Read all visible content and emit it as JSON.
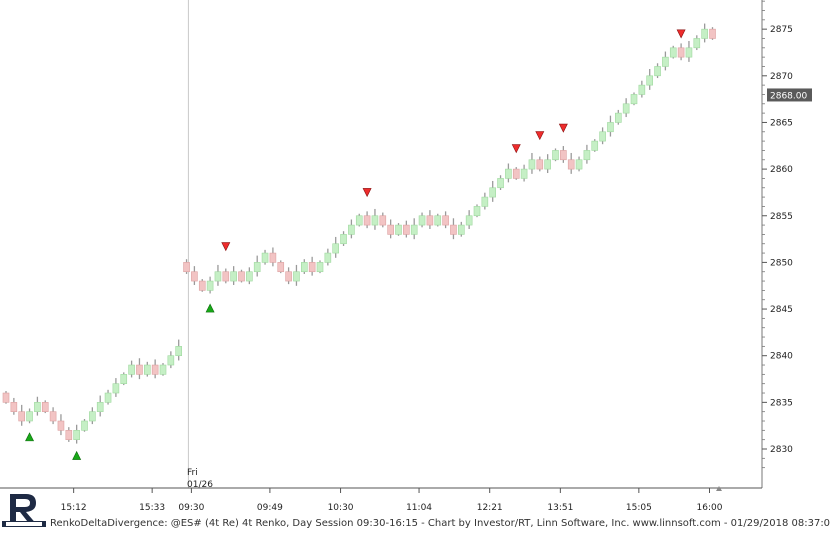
{
  "status_bar": {
    "text": "RenkoDeltaDivergence: @ES# (4t Re) 4t Renko, Day Session 09:30-16:15 - Chart by Investor/RT, Linn Software, Inc. www.linnsoft.com - 01/29/2018 08:37:0"
  },
  "session_label": {
    "day": "Fri",
    "date": "01/26"
  },
  "last_price": {
    "label": "2868.00"
  },
  "colors": {
    "up_brick": "#c5efc5",
    "down_brick": "#f2c4c4",
    "wick": "#9a9a9a",
    "buy_marker": "#18a818",
    "sell_marker": "#ee2c2c"
  },
  "chart_data": {
    "type": "renko",
    "brick_size": 1.0,
    "ylim": [
      2827,
      2879
    ],
    "yticks": [
      2830,
      2835,
      2840,
      2845,
      2850,
      2855,
      2860,
      2865,
      2870,
      2875
    ],
    "ytick_labels": [
      "2830",
      "2835",
      "2840",
      "2845",
      "2850",
      "2855",
      "2860",
      "2865",
      "2870",
      "2875"
    ],
    "xtick_labels": [
      "15:12",
      "15:33",
      "09:30",
      "09:49",
      "10:30",
      "11:04",
      "12:21",
      "13:51",
      "15:05",
      "16:00"
    ],
    "xtick_brick_index": [
      9,
      19,
      24,
      34,
      43,
      53,
      62,
      71,
      81,
      90
    ],
    "session_break_index": 24,
    "bricks": [
      {
        "d": "down",
        "c": 2835
      },
      {
        "d": "down",
        "c": 2834
      },
      {
        "d": "down",
        "c": 2833
      },
      {
        "d": "up",
        "c": 2834
      },
      {
        "d": "up",
        "c": 2835
      },
      {
        "d": "down",
        "c": 2834
      },
      {
        "d": "down",
        "c": 2833
      },
      {
        "d": "down",
        "c": 2832
      },
      {
        "d": "down",
        "c": 2831
      },
      {
        "d": "up",
        "c": 2832
      },
      {
        "d": "up",
        "c": 2833
      },
      {
        "d": "up",
        "c": 2834
      },
      {
        "d": "up",
        "c": 2835
      },
      {
        "d": "up",
        "c": 2836
      },
      {
        "d": "up",
        "c": 2837
      },
      {
        "d": "up",
        "c": 2838
      },
      {
        "d": "up",
        "c": 2839
      },
      {
        "d": "down",
        "c": 2838
      },
      {
        "d": "up",
        "c": 2839
      },
      {
        "d": "down",
        "c": 2838
      },
      {
        "d": "up",
        "c": 2839
      },
      {
        "d": "up",
        "c": 2840
      },
      {
        "d": "up",
        "c": 2841
      },
      {
        "d": "down",
        "c": 2849
      },
      {
        "d": "down",
        "c": 2848
      },
      {
        "d": "down",
        "c": 2847
      },
      {
        "d": "up",
        "c": 2848
      },
      {
        "d": "up",
        "c": 2849
      },
      {
        "d": "down",
        "c": 2848
      },
      {
        "d": "up",
        "c": 2849
      },
      {
        "d": "down",
        "c": 2848
      },
      {
        "d": "up",
        "c": 2849
      },
      {
        "d": "up",
        "c": 2850
      },
      {
        "d": "up",
        "c": 2851
      },
      {
        "d": "down",
        "c": 2850
      },
      {
        "d": "down",
        "c": 2849
      },
      {
        "d": "down",
        "c": 2848
      },
      {
        "d": "up",
        "c": 2849
      },
      {
        "d": "up",
        "c": 2850
      },
      {
        "d": "down",
        "c": 2849
      },
      {
        "d": "up",
        "c": 2850
      },
      {
        "d": "up",
        "c": 2851
      },
      {
        "d": "up",
        "c": 2852
      },
      {
        "d": "up",
        "c": 2853
      },
      {
        "d": "up",
        "c": 2854
      },
      {
        "d": "up",
        "c": 2855
      },
      {
        "d": "down",
        "c": 2854
      },
      {
        "d": "up",
        "c": 2855
      },
      {
        "d": "down",
        "c": 2854
      },
      {
        "d": "down",
        "c": 2853
      },
      {
        "d": "up",
        "c": 2854
      },
      {
        "d": "down",
        "c": 2853
      },
      {
        "d": "up",
        "c": 2854
      },
      {
        "d": "up",
        "c": 2855
      },
      {
        "d": "down",
        "c": 2854
      },
      {
        "d": "up",
        "c": 2855
      },
      {
        "d": "down",
        "c": 2854
      },
      {
        "d": "down",
        "c": 2853
      },
      {
        "d": "up",
        "c": 2854
      },
      {
        "d": "up",
        "c": 2855
      },
      {
        "d": "up",
        "c": 2856
      },
      {
        "d": "up",
        "c": 2857
      },
      {
        "d": "up",
        "c": 2858
      },
      {
        "d": "up",
        "c": 2859
      },
      {
        "d": "up",
        "c": 2860
      },
      {
        "d": "down",
        "c": 2859
      },
      {
        "d": "up",
        "c": 2860
      },
      {
        "d": "up",
        "c": 2861
      },
      {
        "d": "down",
        "c": 2860
      },
      {
        "d": "up",
        "c": 2861
      },
      {
        "d": "up",
        "c": 2862
      },
      {
        "d": "down",
        "c": 2861
      },
      {
        "d": "down",
        "c": 2860
      },
      {
        "d": "up",
        "c": 2861
      },
      {
        "d": "up",
        "c": 2862
      },
      {
        "d": "up",
        "c": 2863
      },
      {
        "d": "up",
        "c": 2864
      },
      {
        "d": "up",
        "c": 2865
      },
      {
        "d": "up",
        "c": 2866
      },
      {
        "d": "up",
        "c": 2867
      },
      {
        "d": "up",
        "c": 2868
      },
      {
        "d": "up",
        "c": 2869
      },
      {
        "d": "up",
        "c": 2870
      },
      {
        "d": "up",
        "c": 2871
      },
      {
        "d": "up",
        "c": 2872
      },
      {
        "d": "up",
        "c": 2873
      },
      {
        "d": "down",
        "c": 2872
      },
      {
        "d": "up",
        "c": 2873
      },
      {
        "d": "up",
        "c": 2874
      },
      {
        "d": "up",
        "c": 2875
      },
      {
        "d": "down",
        "c": 2874
      }
    ],
    "buy_signals": [
      {
        "i": 3,
        "price": 2831.3
      },
      {
        "i": 9,
        "price": 2829.3
      },
      {
        "i": 26,
        "price": 2845.1
      }
    ],
    "sell_signals": [
      {
        "i": 28,
        "price": 2851.7
      },
      {
        "i": 46,
        "price": 2857.5
      },
      {
        "i": 65,
        "price": 2862.2
      },
      {
        "i": 68,
        "price": 2863.6
      },
      {
        "i": 71,
        "price": 2864.4
      },
      {
        "i": 86,
        "price": 2874.5
      }
    ]
  }
}
